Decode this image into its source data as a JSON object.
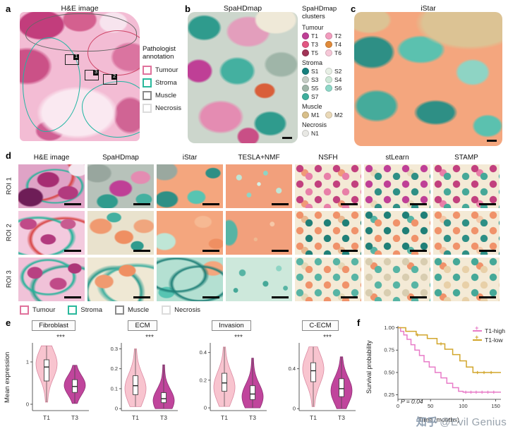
{
  "panels": {
    "a": "a",
    "b": "b",
    "c": "c",
    "d": "d",
    "e": "e",
    "f": "f"
  },
  "panel_a": {
    "title": "H&E image",
    "roi_markers": [
      "1",
      "3",
      "2"
    ],
    "legend": {
      "title": "Pathologist annotation",
      "items": [
        {
          "label": "Tumour",
          "color": "#e0729c"
        },
        {
          "label": "Stroma",
          "color": "#2ab89c"
        },
        {
          "label": "Muscle",
          "color": "#8a8a8a"
        },
        {
          "label": "Necrosis",
          "color": "#dcdcdc"
        }
      ]
    }
  },
  "panel_b": {
    "title": "SpaHDmap"
  },
  "cluster_legend": {
    "title": "SpaHDmap clusters",
    "tumour": {
      "name": "Tumour",
      "items": [
        {
          "label": "T1",
          "color": "#bf3f96"
        },
        {
          "label": "T2",
          "color": "#f29cbe"
        },
        {
          "label": "T3",
          "color": "#e25782"
        },
        {
          "label": "T4",
          "color": "#e08a3a"
        },
        {
          "label": "T5",
          "color": "#a13457"
        },
        {
          "label": "T6",
          "color": "#f6c8d8"
        }
      ]
    },
    "stroma": {
      "name": "Stroma",
      "items": [
        {
          "label": "S1",
          "color": "#17807e"
        },
        {
          "label": "S2",
          "color": "#e8f0e6"
        },
        {
          "label": "S3",
          "color": "#c4ccc4"
        },
        {
          "label": "S4",
          "color": "#cfe8d8"
        },
        {
          "label": "S5",
          "color": "#9fb5a8"
        },
        {
          "label": "S6",
          "color": "#8ed8c8"
        },
        {
          "label": "S7",
          "color": "#3fae9d"
        }
      ]
    },
    "muscle": {
      "name": "Muscle",
      "items": [
        {
          "label": "M1",
          "color": "#d8bf8a"
        },
        {
          "label": "M2",
          "color": "#ead9b8"
        }
      ]
    },
    "necrosis": {
      "name": "Necrosis",
      "items": [
        {
          "label": "N1",
          "color": "#e8e8e4"
        }
      ]
    }
  },
  "panel_c": {
    "title": "iStar"
  },
  "panel_d": {
    "row_labels": [
      "ROI 1",
      "ROI 2",
      "ROI 3"
    ],
    "col_headers": [
      "H&E image",
      "SpaHDmap",
      "iStar",
      "TESLA+NMF",
      "NSFH",
      "stLearn",
      "STAMP"
    ]
  },
  "panel_e": {
    "ylabel": "Mean expression"
  },
  "panel_f": {
    "ylabel": "Survival probability",
    "xlabel": "Time (months)",
    "pvalue": "P = 0.04",
    "legend": [
      {
        "label": "T1-high",
        "color": "#e87cc8"
      },
      {
        "label": "T1-low",
        "color": "#d2a62c"
      }
    ]
  },
  "watermark": {
    "logo": "知乎",
    "handle": "@Evil Genius"
  },
  "chart_data": [
    {
      "type": "violin",
      "ylabel": "Mean expression",
      "categories": [
        "T1",
        "T3"
      ],
      "group_colors": [
        {
          "fill": "#f8c4cf",
          "stroke": "#db8ba3"
        },
        {
          "fill": "#c0459c",
          "stroke": "#8e2f74"
        }
      ],
      "plots": [
        {
          "title": "Fibroblast",
          "sig": "***",
          "ylim": [
            -0.15,
            1.45
          ],
          "yticks": [
            "0",
            "1"
          ],
          "groups": [
            {
              "min": 0.05,
              "max": 1.38,
              "median": 0.88,
              "q1": 0.55,
              "q3": 1.05,
              "peak": 0.95
            },
            {
              "min": 0.02,
              "max": 0.92,
              "median": 0.42,
              "q1": 0.28,
              "q3": 0.58,
              "peak": 0.45
            }
          ]
        },
        {
          "title": "ECM",
          "sig": "***",
          "ylim": [
            -0.01,
            0.33
          ],
          "yticks": [
            "0",
            "0.1",
            "0.2",
            "0.3"
          ],
          "groups": [
            {
              "min": 0.01,
              "max": 0.3,
              "median": 0.115,
              "q1": 0.07,
              "q3": 0.165,
              "peak": 0.1
            },
            {
              "min": 0,
              "max": 0.22,
              "median": 0.05,
              "q1": 0.03,
              "q3": 0.08,
              "peak": 0.04
            }
          ]
        },
        {
          "title": "Invasion",
          "sig": "***",
          "ylim": [
            -0.02,
            0.47
          ],
          "yticks": [
            "0",
            "0.2",
            "0.4"
          ],
          "groups": [
            {
              "min": 0.01,
              "max": 0.44,
              "median": 0.18,
              "q1": 0.12,
              "q3": 0.25,
              "peak": 0.15
            },
            {
              "min": 0,
              "max": 0.36,
              "median": 0.1,
              "q1": 0.06,
              "q3": 0.16,
              "peak": 0.08
            }
          ]
        },
        {
          "title": "C-ECM",
          "sig": "***",
          "ylim": [
            -0.02,
            0.66
          ],
          "yticks": [
            "0",
            "0.4"
          ],
          "groups": [
            {
              "min": 0.02,
              "max": 0.62,
              "median": 0.38,
              "q1": 0.27,
              "q3": 0.46,
              "peak": 0.4
            },
            {
              "min": 0,
              "max": 0.52,
              "median": 0.2,
              "q1": 0.12,
              "q3": 0.3,
              "peak": 0.18
            }
          ]
        }
      ]
    },
    {
      "type": "km",
      "xlabel": "Time (months)",
      "ylabel": "Survival probability",
      "xlim": [
        0,
        158
      ],
      "ylim": [
        0.2,
        1.02
      ],
      "xticks": [
        "0",
        "50",
        "100",
        "150"
      ],
      "yticks": [
        "0.25",
        "0.50",
        "0.75",
        "1.00"
      ],
      "pvalue": "P = 0.04",
      "series": [
        {
          "name": "T1-high",
          "color": "#e87cc8",
          "steps": [
            [
              0,
              1
            ],
            [
              4,
              0.96
            ],
            [
              9,
              0.92
            ],
            [
              14,
              0.87
            ],
            [
              20,
              0.81
            ],
            [
              26,
              0.75
            ],
            [
              33,
              0.69
            ],
            [
              40,
              0.62
            ],
            [
              48,
              0.56
            ],
            [
              57,
              0.5
            ],
            [
              66,
              0.44
            ],
            [
              75,
              0.38
            ],
            [
              84,
              0.33
            ],
            [
              93,
              0.29
            ],
            [
              100,
              0.28
            ]
          ],
          "censors": [
            [
              104,
              0.28
            ],
            [
              112,
              0.28
            ],
            [
              120,
              0.28
            ],
            [
              129,
              0.28
            ],
            [
              138,
              0.28
            ],
            [
              147,
              0.28
            ]
          ]
        },
        {
          "name": "T1-low",
          "color": "#d2a62c",
          "steps": [
            [
              0,
              1
            ],
            [
              12,
              0.96
            ],
            [
              28,
              0.92
            ],
            [
              45,
              0.88
            ],
            [
              60,
              0.82
            ],
            [
              72,
              0.76
            ],
            [
              84,
              0.7
            ],
            [
              95,
              0.63
            ],
            [
              105,
              0.56
            ],
            [
              115,
              0.5
            ]
          ],
          "censors": [
            [
              30,
              0.92
            ],
            [
              66,
              0.82
            ],
            [
              122,
              0.5
            ],
            [
              132,
              0.5
            ],
            [
              143,
              0.5
            ]
          ]
        }
      ]
    }
  ]
}
